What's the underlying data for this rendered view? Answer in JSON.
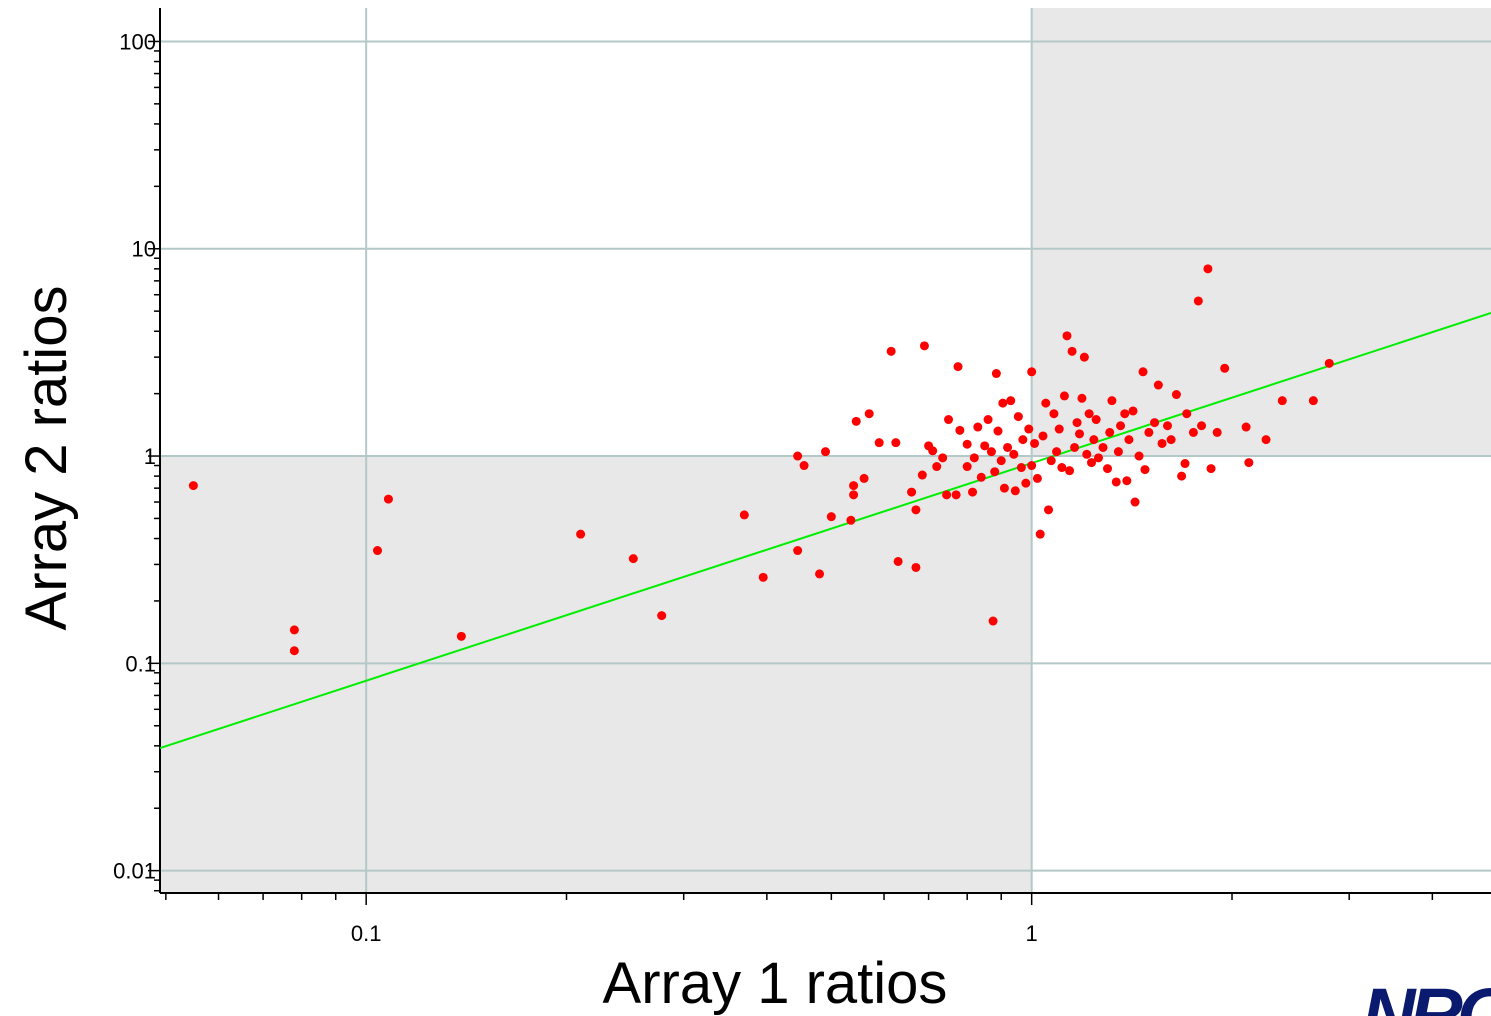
{
  "chart_data": {
    "type": "scatter",
    "xlabel": "Array 1 ratios",
    "ylabel": "Array 2 ratios",
    "x_scale": "log",
    "y_scale": "log",
    "xlim": [
      0.049,
      4.9
    ],
    "ylim": [
      0.0078,
      145
    ],
    "x_ticks": [
      {
        "value": 0.1,
        "label": "0.1"
      },
      {
        "value": 1,
        "label": "1"
      }
    ],
    "y_ticks": [
      {
        "value": 0.01,
        "label": "0.01"
      },
      {
        "value": 0.1,
        "label": "0.1"
      },
      {
        "value": 1,
        "label": "1"
      },
      {
        "value": 10,
        "label": "10"
      },
      {
        "value": 100,
        "label": "100"
      }
    ],
    "grid": true,
    "shaded_quadrants": "x<1 & y<1, x>1 & y>1",
    "colors": {
      "points": "#ff0000",
      "fit_line": "#00ee00",
      "shade": "#e8e8e8",
      "grid": "#b4c8c8"
    },
    "fit_line": {
      "x": [
        0.049,
        4.9
      ],
      "y": [
        0.039,
        4.9
      ]
    },
    "points": [
      [
        0.055,
        0.72
      ],
      [
        0.078,
        0.145
      ],
      [
        0.078,
        0.115
      ],
      [
        0.104,
        0.35
      ],
      [
        0.108,
        0.62
      ],
      [
        0.139,
        0.135
      ],
      [
        0.21,
        0.42
      ],
      [
        0.252,
        0.32
      ],
      [
        0.278,
        0.17
      ],
      [
        0.37,
        0.52
      ],
      [
        0.395,
        0.26
      ],
      [
        0.445,
        0.35
      ],
      [
        0.445,
        1.0
      ],
      [
        0.455,
        0.9
      ],
      [
        0.48,
        0.27
      ],
      [
        0.49,
        1.05
      ],
      [
        0.5,
        0.51
      ],
      [
        0.535,
        0.49
      ],
      [
        0.54,
        0.72
      ],
      [
        0.54,
        0.65
      ],
      [
        0.545,
        1.47
      ],
      [
        0.56,
        0.78
      ],
      [
        0.57,
        1.6
      ],
      [
        0.59,
        1.16
      ],
      [
        0.615,
        3.2
      ],
      [
        0.625,
        1.16
      ],
      [
        0.63,
        0.31
      ],
      [
        0.66,
        0.67
      ],
      [
        0.67,
        0.55
      ],
      [
        0.67,
        0.29
      ],
      [
        0.685,
        0.81
      ],
      [
        0.69,
        3.4
      ],
      [
        0.7,
        1.12
      ],
      [
        0.71,
        1.06
      ],
      [
        0.72,
        0.89
      ],
      [
        0.735,
        0.98
      ],
      [
        0.745,
        0.65
      ],
      [
        0.75,
        1.5
      ],
      [
        0.77,
        0.65
      ],
      [
        0.775,
        2.7
      ],
      [
        0.78,
        1.33
      ],
      [
        0.8,
        0.89
      ],
      [
        0.8,
        1.14
      ],
      [
        0.815,
        0.67
      ],
      [
        0.82,
        0.98
      ],
      [
        0.83,
        1.38
      ],
      [
        0.84,
        0.79
      ],
      [
        0.85,
        1.12
      ],
      [
        0.86,
        1.5
      ],
      [
        0.87,
        1.05
      ],
      [
        0.875,
        0.16
      ],
      [
        0.88,
        0.84
      ],
      [
        0.885,
        2.5
      ],
      [
        0.89,
        1.32
      ],
      [
        0.9,
        0.95
      ],
      [
        0.905,
        1.8
      ],
      [
        0.91,
        0.7
      ],
      [
        0.92,
        1.1
      ],
      [
        0.93,
        1.85
      ],
      [
        0.94,
        1.02
      ],
      [
        0.945,
        0.68
      ],
      [
        0.955,
        1.55
      ],
      [
        0.965,
        0.88
      ],
      [
        0.97,
        1.2
      ],
      [
        0.98,
        0.74
      ],
      [
        0.99,
        1.35
      ],
      [
        1.0,
        0.9
      ],
      [
        1.0,
        2.55
      ],
      [
        1.01,
        1.15
      ],
      [
        1.02,
        0.78
      ],
      [
        1.03,
        0.42
      ],
      [
        1.04,
        1.25
      ],
      [
        1.05,
        1.8
      ],
      [
        1.06,
        0.55
      ],
      [
        1.07,
        0.95
      ],
      [
        1.08,
        1.6
      ],
      [
        1.09,
        1.05
      ],
      [
        1.1,
        1.35
      ],
      [
        1.11,
        0.88
      ],
      [
        1.12,
        1.95
      ],
      [
        1.13,
        3.8
      ],
      [
        1.14,
        0.85
      ],
      [
        1.15,
        3.2
      ],
      [
        1.16,
        1.1
      ],
      [
        1.17,
        1.45
      ],
      [
        1.18,
        1.28
      ],
      [
        1.19,
        1.9
      ],
      [
        1.2,
        3.0
      ],
      [
        1.21,
        1.02
      ],
      [
        1.22,
        1.6
      ],
      [
        1.23,
        0.93
      ],
      [
        1.24,
        1.2
      ],
      [
        1.25,
        1.5
      ],
      [
        1.26,
        0.98
      ],
      [
        1.28,
        1.1
      ],
      [
        1.3,
        0.87
      ],
      [
        1.31,
        1.3
      ],
      [
        1.32,
        1.85
      ],
      [
        1.34,
        0.75
      ],
      [
        1.35,
        1.05
      ],
      [
        1.36,
        1.4
      ],
      [
        1.38,
        1.6
      ],
      [
        1.39,
        0.76
      ],
      [
        1.4,
        1.2
      ],
      [
        1.42,
        1.65
      ],
      [
        1.43,
        0.6
      ],
      [
        1.45,
        1.0
      ],
      [
        1.47,
        2.55
      ],
      [
        1.48,
        0.86
      ],
      [
        1.5,
        1.3
      ],
      [
        1.53,
        1.45
      ],
      [
        1.55,
        2.2
      ],
      [
        1.57,
        1.15
      ],
      [
        1.6,
        1.4
      ],
      [
        1.62,
        1.2
      ],
      [
        1.65,
        1.98
      ],
      [
        1.68,
        0.8
      ],
      [
        1.7,
        0.92
      ],
      [
        1.71,
        1.6
      ],
      [
        1.75,
        1.3
      ],
      [
        1.78,
        5.6
      ],
      [
        1.8,
        1.4
      ],
      [
        1.84,
        8.0
      ],
      [
        1.86,
        0.87
      ],
      [
        1.9,
        1.3
      ],
      [
        1.95,
        2.65
      ],
      [
        2.1,
        1.38
      ],
      [
        2.12,
        0.93
      ],
      [
        2.25,
        1.2
      ],
      [
        2.38,
        1.85
      ],
      [
        2.65,
        1.85
      ],
      [
        2.8,
        2.8
      ]
    ]
  },
  "logo": {
    "text": "NRC"
  }
}
